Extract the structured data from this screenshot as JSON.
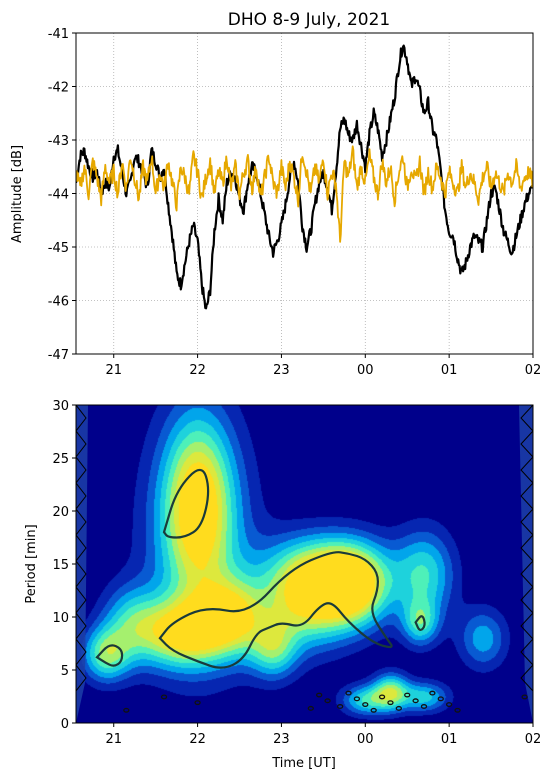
{
  "chart_data": [
    {
      "type": "line",
      "title": "DHO 8-9 July, 2021",
      "xlabel": "",
      "ylabel": "Amplitude [dB]",
      "ylim": [
        -47,
        -41
      ],
      "yticks": [
        "-41",
        "-42",
        "-43",
        "-44",
        "-45",
        "-46",
        "-47"
      ],
      "xticks": [
        "21",
        "22",
        "23",
        "00",
        "01",
        "02"
      ],
      "grid": true,
      "colors": {
        "black_series": "#000000",
        "orange_series": "#e6a800"
      },
      "series": [
        {
          "color": "#000000",
          "x_hours": [
            20.55,
            20.6,
            20.65,
            20.7,
            20.75,
            20.8,
            20.85,
            20.9,
            20.95,
            21.0,
            21.05,
            21.1,
            21.15,
            21.2,
            21.25,
            21.3,
            21.35,
            21.4,
            21.45,
            21.5,
            21.55,
            21.6,
            21.65,
            21.7,
            21.75,
            21.8,
            21.85,
            21.9,
            21.95,
            22.0,
            22.05,
            22.1,
            22.15,
            22.2,
            22.25,
            22.3,
            22.35,
            22.4,
            22.45,
            22.5,
            22.55,
            22.6,
            22.65,
            22.7,
            22.75,
            22.8,
            22.85,
            22.9,
            22.95,
            23.0,
            23.05,
            23.1,
            23.15,
            23.2,
            23.25,
            23.3,
            23.35,
            23.4,
            23.45,
            23.5,
            23.55,
            23.6,
            23.65,
            23.7,
            23.75,
            23.8,
            23.85,
            23.9,
            23.95,
            24.0,
            24.05,
            24.1,
            24.15,
            24.2,
            24.25,
            24.3,
            24.35,
            24.4,
            24.45,
            24.5,
            24.55,
            24.6,
            24.65,
            24.7,
            24.75,
            24.8,
            24.85,
            24.9,
            24.95,
            25.0,
            25.05,
            25.1,
            25.15,
            25.2,
            25.25,
            25.3,
            25.35,
            25.4,
            25.45,
            25.5,
            25.55,
            25.6,
            25.65,
            25.7,
            25.75,
            25.8,
            25.85,
            25.9,
            25.95,
            26.0
          ],
          "values": [
            -43.8,
            -43.3,
            -43.2,
            -43.5,
            -43.7,
            -43.6,
            -44.0,
            -43.8,
            -43.9,
            -43.3,
            -43.2,
            -43.6,
            -44.0,
            -43.8,
            -43.3,
            -43.4,
            -43.6,
            -43.9,
            -43.2,
            -43.4,
            -43.7,
            -43.5,
            -44.2,
            -44.8,
            -45.5,
            -45.7,
            -45.3,
            -44.9,
            -44.6,
            -44.9,
            -45.7,
            -46.2,
            -45.8,
            -44.7,
            -44.1,
            -44.5,
            -43.8,
            -43.6,
            -43.7,
            -44.1,
            -44.3,
            -43.8,
            -43.5,
            -43.6,
            -44.0,
            -44.4,
            -44.8,
            -45.1,
            -44.9,
            -44.6,
            -44.2,
            -43.7,
            -43.4,
            -43.8,
            -44.6,
            -45.0,
            -44.7,
            -44.2,
            -43.8,
            -43.6,
            -43.9,
            -44.3,
            -43.6,
            -42.8,
            -42.6,
            -42.9,
            -43.0,
            -42.7,
            -43.1,
            -43.5,
            -42.9,
            -42.5,
            -42.8,
            -43.3,
            -43.0,
            -42.6,
            -42.2,
            -41.6,
            -41.2,
            -41.5,
            -42.0,
            -41.8,
            -42.1,
            -42.5,
            -42.3,
            -42.8,
            -43.0,
            -43.6,
            -44.3,
            -44.7,
            -44.8,
            -45.2,
            -45.5,
            -45.3,
            -45.0,
            -44.8,
            -44.9,
            -45.0,
            -44.5,
            -44.0,
            -43.9,
            -44.3,
            -44.7,
            -44.9,
            -45.1,
            -44.8,
            -44.5,
            -44.2,
            -44.0,
            -43.9
          ],
          "name": ""
        },
        {
          "color": "#e6a800",
          "x_hours": [
            20.55,
            20.6,
            20.65,
            20.7,
            20.75,
            20.8,
            20.85,
            20.9,
            20.95,
            21.0,
            21.05,
            21.1,
            21.15,
            21.2,
            21.25,
            21.3,
            21.35,
            21.4,
            21.45,
            21.5,
            21.55,
            21.6,
            21.65,
            21.7,
            21.75,
            21.8,
            21.85,
            21.9,
            21.95,
            22.0,
            22.05,
            22.1,
            22.15,
            22.2,
            22.25,
            22.3,
            22.35,
            22.4,
            22.45,
            22.5,
            22.55,
            22.6,
            22.65,
            22.7,
            22.75,
            22.8,
            22.85,
            22.9,
            22.95,
            23.0,
            23.05,
            23.1,
            23.15,
            23.2,
            23.25,
            23.3,
            23.35,
            23.4,
            23.45,
            23.5,
            23.55,
            23.6,
            23.65,
            23.7,
            23.75,
            23.8,
            23.85,
            23.9,
            23.95,
            24.0,
            24.05,
            24.1,
            24.15,
            24.2,
            24.25,
            24.3,
            24.35,
            24.4,
            24.45,
            24.5,
            24.55,
            24.6,
            24.65,
            24.7,
            24.75,
            24.8,
            24.85,
            24.9,
            24.95,
            25.0,
            25.05,
            25.1,
            25.15,
            25.2,
            25.25,
            25.3,
            25.35,
            25.4,
            25.45,
            25.5,
            25.55,
            25.6,
            25.65,
            25.7,
            25.75,
            25.8,
            25.85,
            25.9,
            25.95,
            26.0
          ],
          "values": [
            -43.6,
            -43.9,
            -43.5,
            -44.0,
            -43.4,
            -43.7,
            -44.1,
            -43.5,
            -43.8,
            -43.6,
            -44.0,
            -43.4,
            -43.9,
            -43.3,
            -43.7,
            -44.1,
            -43.5,
            -43.8,
            -43.3,
            -44.0,
            -43.6,
            -43.9,
            -43.4,
            -43.8,
            -44.2,
            -43.5,
            -43.7,
            -44.0,
            -43.3,
            -43.6,
            -44.1,
            -43.7,
            -43.4,
            -44.0,
            -43.6,
            -43.8,
            -43.3,
            -43.9,
            -43.5,
            -44.0,
            -43.6,
            -43.4,
            -43.9,
            -43.5,
            -44.1,
            -43.7,
            -43.3,
            -43.8,
            -44.0,
            -43.5,
            -43.9,
            -43.4,
            -43.7,
            -44.1,
            -43.2,
            -43.6,
            -44.0,
            -43.5,
            -43.8,
            -43.3,
            -44.0,
            -43.6,
            -43.8,
            -44.9,
            -43.4,
            -43.7,
            -43.2,
            -43.9,
            -43.5,
            -43.8,
            -43.3,
            -43.7,
            -44.0,
            -43.4,
            -43.8,
            -43.5,
            -44.1,
            -43.6,
            -43.3,
            -43.9,
            -43.5,
            -43.8,
            -43.4,
            -44.0,
            -43.6,
            -43.9,
            -43.5,
            -43.7,
            -44.0,
            -43.6,
            -43.8,
            -44.0,
            -43.5,
            -43.9,
            -43.6,
            -43.8,
            -44.1,
            -43.7,
            -43.5,
            -43.9,
            -43.6,
            -43.8,
            -44.0,
            -43.6,
            -43.8,
            -43.5,
            -43.9,
            -43.7,
            -43.6,
            -43.8
          ],
          "name": ""
        }
      ]
    },
    {
      "type": "heatmap",
      "title": "",
      "xlabel": "Time [UT]",
      "ylabel": "Period [min]",
      "ylim": [
        0,
        30
      ],
      "yticks": [
        "0",
        "5",
        "10",
        "15",
        "20",
        "25",
        "30"
      ],
      "xticks": [
        "21",
        "22",
        "23",
        "00",
        "01",
        "02"
      ],
      "colormap": [
        "#00008b",
        "#0a3cc8",
        "#00b4f0",
        "#3cf0c8",
        "#c8f050",
        "#ffdc1e"
      ],
      "blobs": [
        {
          "t": 22.0,
          "p": 21,
          "st": 0.28,
          "sp": 5.5,
          "v": 0.85
        },
        {
          "t": 22.0,
          "p": 17,
          "st": 0.45,
          "sp": 8,
          "v": 0.5
        },
        {
          "t": 20.9,
          "p": 6.5,
          "st": 0.2,
          "sp": 1.8,
          "v": 0.7
        },
        {
          "t": 21.8,
          "p": 8.5,
          "st": 0.35,
          "sp": 2.2,
          "v": 0.9
        },
        {
          "t": 22.4,
          "p": 10,
          "st": 0.3,
          "sp": 2.5,
          "v": 0.85
        },
        {
          "t": 23.3,
          "p": 11.5,
          "st": 0.35,
          "sp": 3,
          "v": 0.85
        },
        {
          "t": 23.85,
          "p": 12.8,
          "st": 0.3,
          "sp": 2.6,
          "v": 1.0
        },
        {
          "t": 23.5,
          "p": 14.5,
          "st": 0.5,
          "sp": 2.5,
          "v": 0.6
        },
        {
          "t": 22.9,
          "p": 7,
          "st": 0.2,
          "sp": 2,
          "v": 0.6
        },
        {
          "t": 24.7,
          "p": 14,
          "st": 0.25,
          "sp": 3,
          "v": 0.6
        },
        {
          "t": 24.65,
          "p": 9.5,
          "st": 0.15,
          "sp": 1.5,
          "v": 0.55
        },
        {
          "t": 25.4,
          "p": 8,
          "st": 0.2,
          "sp": 2,
          "v": 0.45
        },
        {
          "t": 24.3,
          "p": 3,
          "st": 0.15,
          "sp": 1.2,
          "v": 0.75
        },
        {
          "t": 24.0,
          "p": 2.2,
          "st": 0.2,
          "sp": 1.0,
          "v": 0.6
        },
        {
          "t": 24.7,
          "p": 2.5,
          "st": 0.2,
          "sp": 1.0,
          "v": 0.55
        },
        {
          "t": 21.2,
          "p": 9.5,
          "st": 0.25,
          "sp": 2.5,
          "v": 0.5
        }
      ],
      "significance_contours": [
        {
          "t": [
            21.6,
            21.75,
            22.05,
            22.15,
            22.05,
            21.85,
            21.65,
            21.6
          ],
          "p": [
            18,
            22,
            24.5,
            22,
            18.5,
            17.5,
            17.5,
            18
          ]
        },
        {
          "t": [
            21.55,
            21.7,
            22.1,
            22.6,
            23.1,
            23.6,
            23.8,
            24.0,
            24.15,
            24.15,
            24.05,
            24.25,
            24.35,
            24.1,
            23.8,
            23.6,
            23.45,
            23.25,
            23.0,
            22.85,
            22.7,
            22.55,
            22.3,
            22.0,
            21.7,
            21.55
          ],
          "p": [
            8,
            9.5,
            11,
            10.2,
            14.5,
            16.2,
            16.0,
            15.5,
            14.2,
            12.5,
            10.5,
            8.0,
            7.0,
            7.5,
            9.5,
            11.5,
            11.0,
            9.0,
            9.5,
            9.0,
            8.5,
            6.0,
            5.0,
            5.8,
            6.8,
            8
          ]
        },
        {
          "t": [
            20.8,
            20.95,
            21.1,
            21.1,
            21.0,
            20.9,
            20.8
          ],
          "p": [
            6.2,
            7.5,
            7.0,
            5.8,
            5.3,
            5.7,
            6.2
          ]
        },
        {
          "t": [
            24.6,
            24.68,
            24.72,
            24.65,
            24.6
          ],
          "p": [
            9.5,
            10.3,
            9.2,
            8.6,
            9.5
          ]
        }
      ]
    }
  ]
}
